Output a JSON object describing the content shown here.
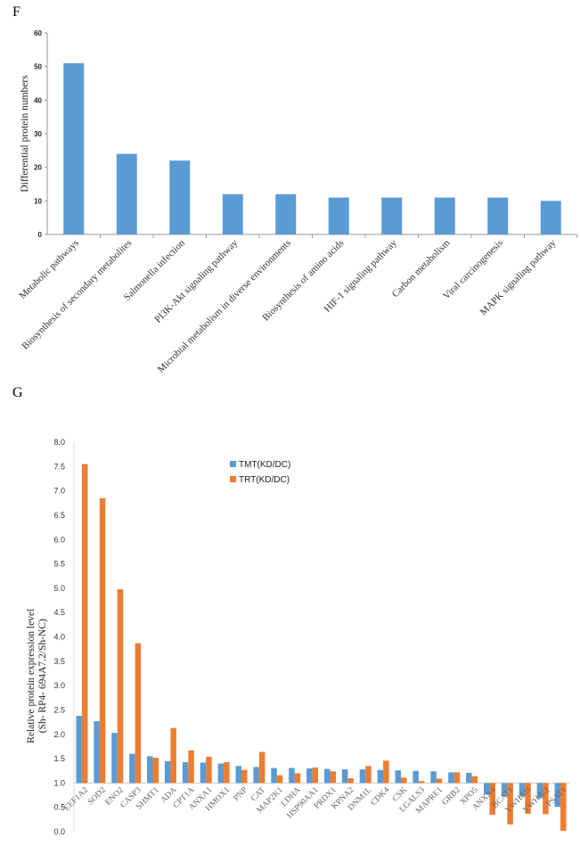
{
  "panels": {
    "f": "F",
    "g": "G"
  },
  "chart_data": [
    {
      "type": "bar",
      "title": "",
      "xlabel": "",
      "ylabel": "Differential protein numbers",
      "ylim": [
        0,
        60
      ],
      "yticks": [
        "0",
        "10",
        "20",
        "30",
        "40",
        "50",
        "60"
      ],
      "grid": false,
      "color": "#5b9bd5",
      "categories": [
        "Metabolic pathways",
        "Biosynthesis of secondary metabolites",
        "Salmonella infection",
        "PI3K-Akt signaling pathway",
        "Microbial metabolism in diverse environments",
        "Biosynthesis of amino acids",
        "HIF-1 signaling pathway",
        "Carbon metabolism",
        "Viral carcinogenesis",
        "MAPK signaling pathway"
      ],
      "values": [
        51,
        24,
        22,
        12,
        12,
        11,
        11,
        11,
        11,
        10
      ]
    },
    {
      "type": "bar",
      "title": "",
      "xlabel": "",
      "ylabel": [
        "Relative protein expression level",
        "(Sh- RP4- 694A7.2/Sh-NC)"
      ],
      "ylim": [
        0,
        8
      ],
      "baseline": 1.0,
      "yticks": [
        "0.0",
        "0.5",
        "1.0",
        "1.5",
        "2.0",
        "2.5",
        "3.0",
        "3.5",
        "4.0",
        "4.5",
        "5.0",
        "5.5",
        "6.0",
        "6.5",
        "7.0",
        "7.5",
        "8.0"
      ],
      "grid": false,
      "legend": "top-center",
      "categories": [
        "EEF1A2",
        "SOD2",
        "ENO2",
        "CASP3",
        "SHMT1",
        "ADA",
        "CPT1A",
        "ANXA1",
        "HMOX1",
        "PNP",
        "CAT",
        "MAP2K1",
        "LDHA",
        "HSP90AA1",
        "PRDX1",
        "KPNA2",
        "DNM1L",
        "CDK4",
        "CSK",
        "LGALS3",
        "MAPRE1",
        "GRB2",
        "XPO5",
        "ANXA4",
        "BCAT1",
        "YWHAH",
        "YWHAQ",
        "PSAT1"
      ],
      "series": [
        {
          "name": "TMT(KD/DC)",
          "color": "#5b9bd5",
          "values": [
            2.38,
            2.27,
            2.03,
            1.6,
            1.55,
            1.45,
            1.43,
            1.42,
            1.4,
            1.35,
            1.33,
            1.31,
            1.31,
            1.3,
            1.29,
            1.28,
            1.28,
            1.27,
            1.26,
            1.25,
            1.24,
            1.22,
            1.21,
            0.76,
            0.73,
            0.72,
            0.69,
            0.51
          ]
        },
        {
          "name": "TRT(KD/DC)",
          "color": "#ed7d31",
          "values": [
            7.55,
            6.85,
            4.98,
            3.87,
            1.52,
            2.13,
            1.67,
            1.54,
            1.43,
            1.27,
            1.64,
            1.16,
            1.2,
            1.32,
            1.24,
            1.1,
            1.35,
            1.46,
            1.11,
            1.04,
            1.09,
            1.22,
            1.14,
            0.35,
            0.15,
            0.37,
            0.36,
            0.02
          ]
        }
      ]
    }
  ]
}
